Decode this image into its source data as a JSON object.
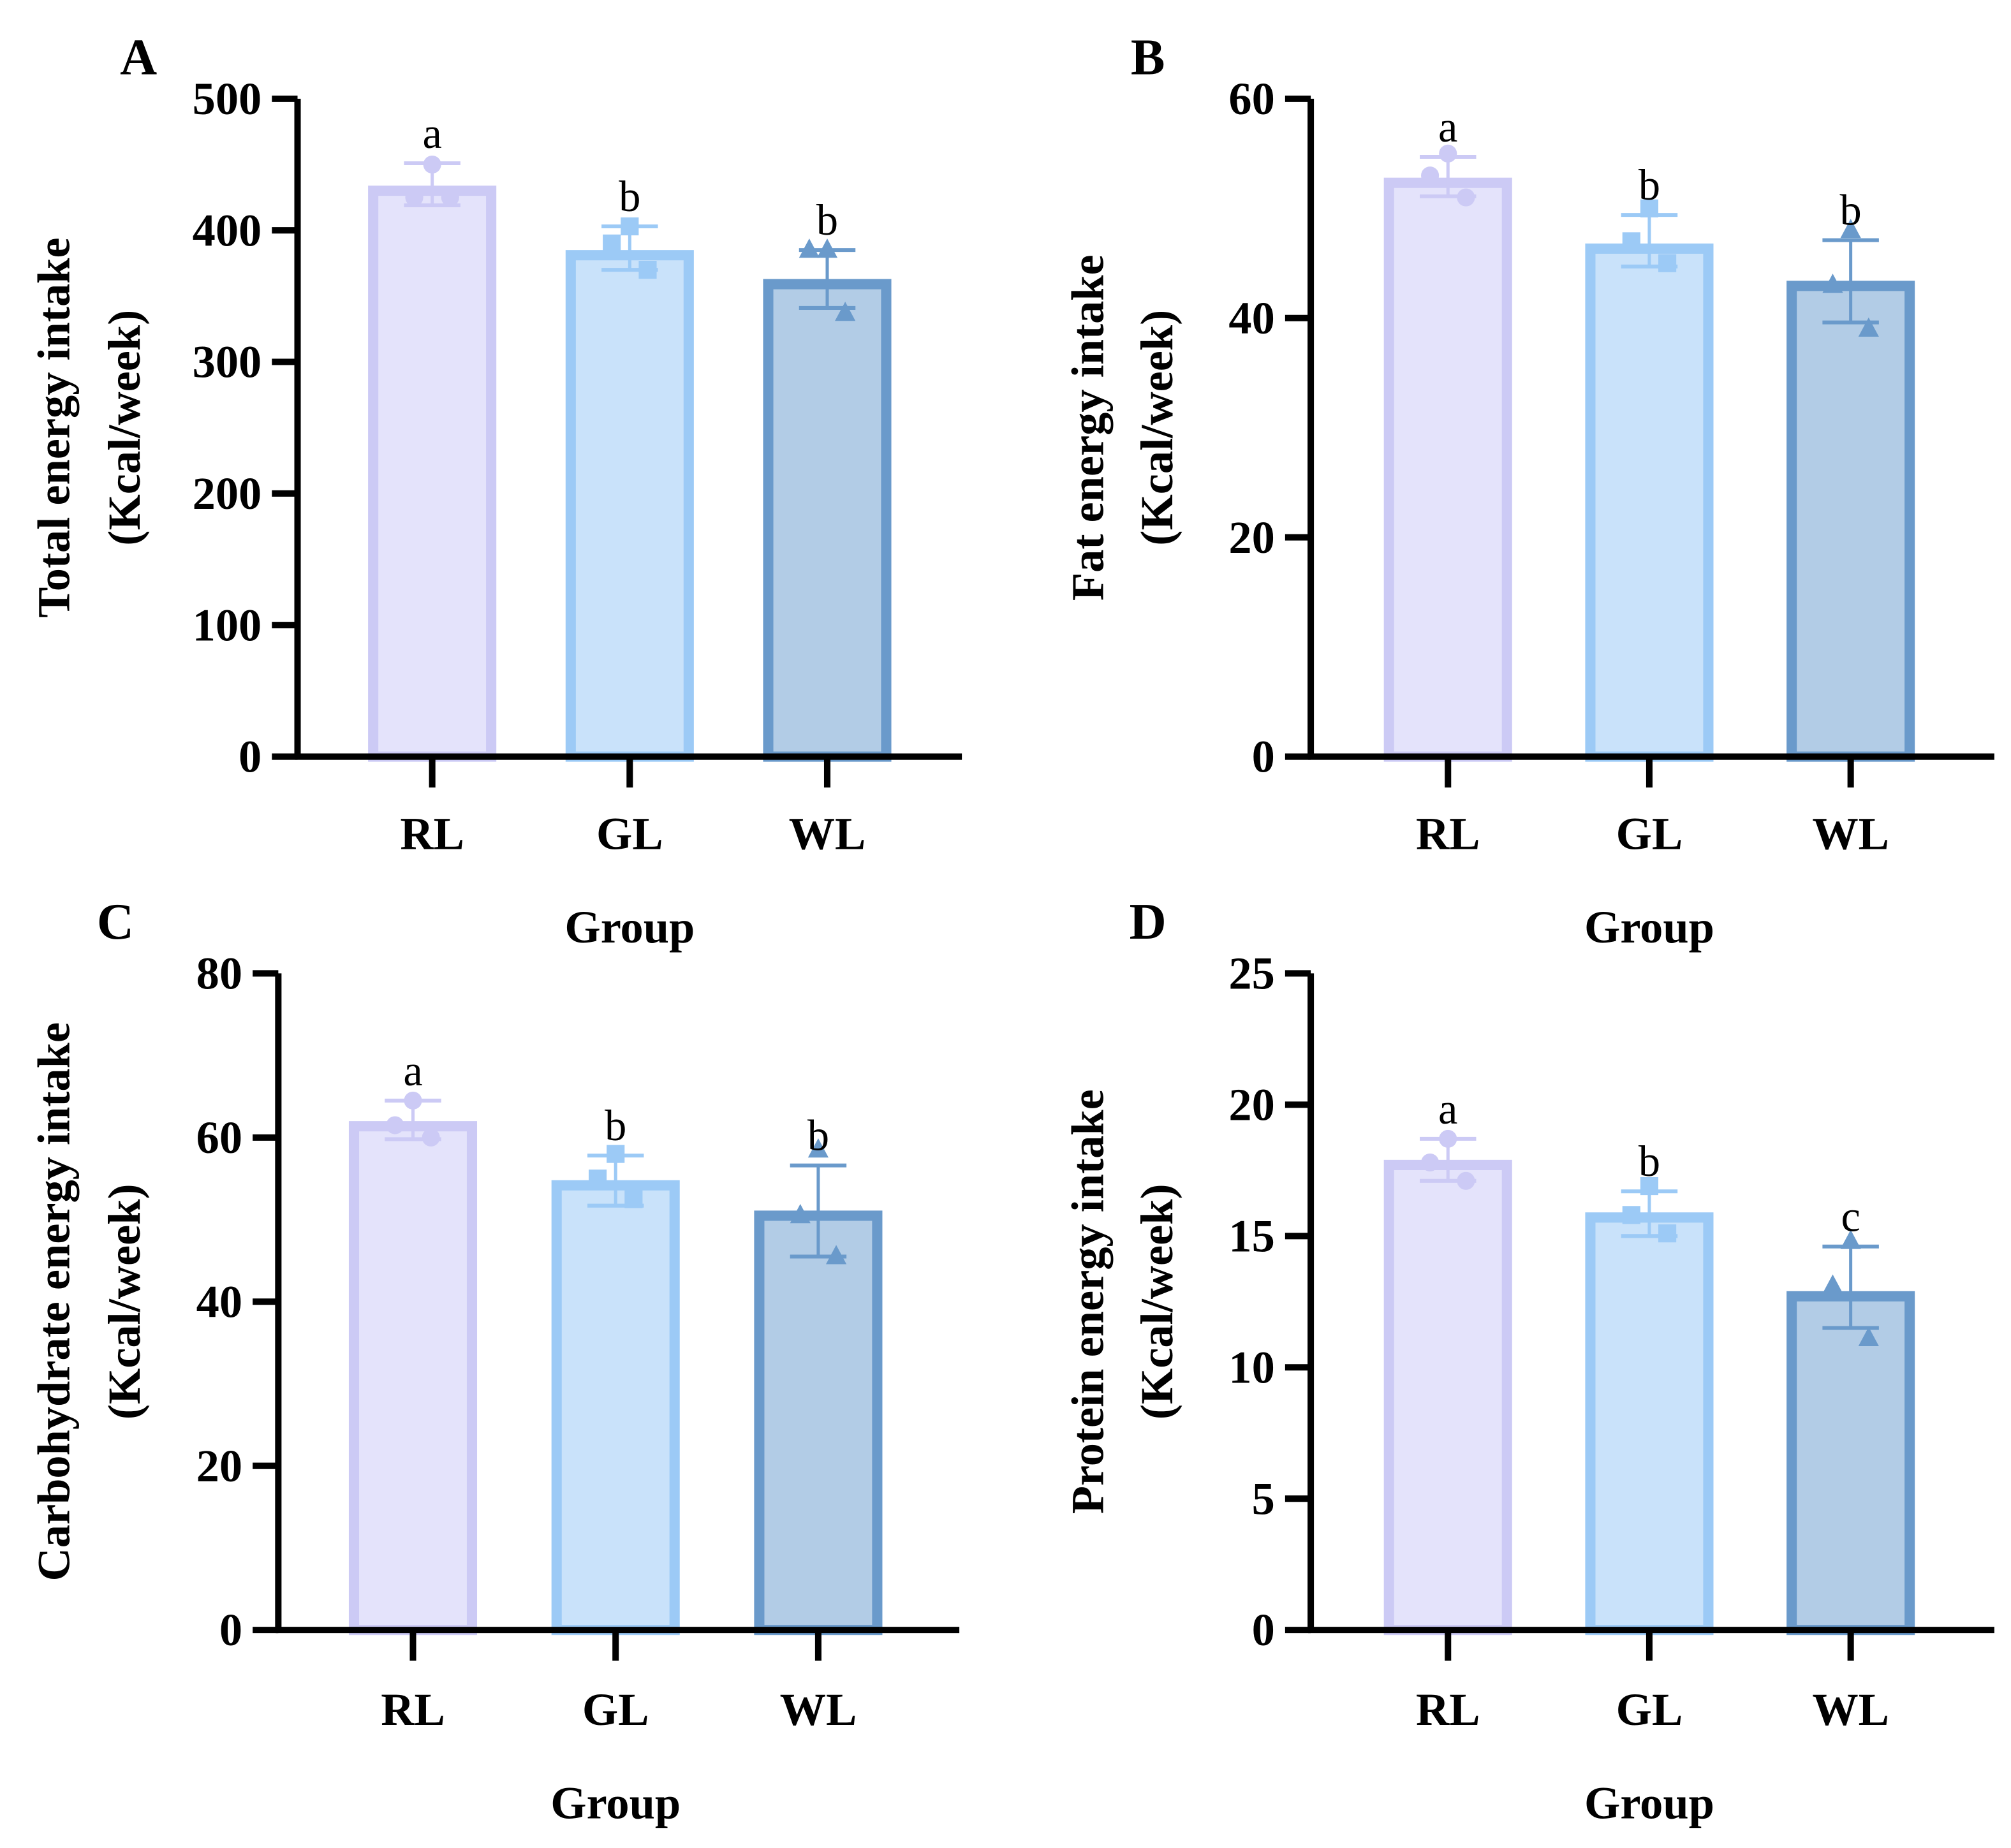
{
  "colors": {
    "RL": {
      "fill": "#e4e3fb",
      "stroke": "#cccaf5"
    },
    "GL": {
      "fill": "#c9e2fa",
      "stroke": "#9ccaf6"
    },
    "WL": {
      "fill": "#b2cce6",
      "stroke": "#6a9acb"
    },
    "axis": "#000000"
  },
  "chart_data": [
    {
      "panel": "A",
      "type": "bar",
      "ylabel_line1": "Total energy intake",
      "ylabel_line2": "(Kcal/week)",
      "xlabel": "Group",
      "categories": [
        "RL",
        "GL",
        "WL"
      ],
      "markers": [
        "circle",
        "square",
        "triangle"
      ],
      "ylim": [
        0,
        500
      ],
      "yticks": [
        0,
        100,
        200,
        300,
        400,
        500
      ],
      "values": [
        434,
        385,
        363
      ],
      "err_low": [
        419,
        370,
        341
      ],
      "err_high": [
        451,
        403,
        385
      ],
      "points": [
        [
          450,
          425,
          425
        ],
        [
          403,
          390,
          370
        ],
        [
          385,
          385,
          337
        ]
      ],
      "letters": [
        "a",
        "b",
        "b"
      ]
    },
    {
      "panel": "B",
      "type": "bar",
      "ylabel_line1": "Fat energy intake",
      "ylabel_line2": "(Kcal/week)",
      "xlabel": "Group",
      "categories": [
        "RL",
        "GL",
        "WL"
      ],
      "markers": [
        "circle",
        "square",
        "triangle"
      ],
      "ylim": [
        0,
        60
      ],
      "yticks": [
        0,
        20,
        40,
        60
      ],
      "values": [
        52.8,
        46.8,
        43.4
      ],
      "err_low": [
        51.1,
        44.7,
        39.6
      ],
      "err_high": [
        54.7,
        49.4,
        47.1
      ],
      "points": [
        [
          55,
          53,
          51
        ],
        [
          50,
          47,
          45
        ],
        [
          48,
          43,
          39
        ]
      ],
      "letters": [
        "a",
        "b",
        "b"
      ]
    },
    {
      "panel": "C",
      "type": "bar",
      "ylabel_line1": "Carbohydrate energy intake",
      "ylabel_line2": "(Kcal/week)",
      "xlabel": "Group",
      "categories": [
        "RL",
        "GL",
        "WL"
      ],
      "markers": [
        "circle",
        "square",
        "triangle"
      ],
      "ylim": [
        0,
        80
      ],
      "yticks": [
        0,
        20,
        40,
        60,
        80
      ],
      "values": [
        62,
        54.8,
        51.1
      ],
      "err_low": [
        59.8,
        51.7,
        45.5
      ],
      "err_high": [
        64.5,
        57.8,
        56.6
      ],
      "points": [
        [
          64.5,
          61.5,
          60
        ],
        [
          58,
          55,
          52.5
        ],
        [
          58.5,
          50.5,
          45.5
        ]
      ],
      "letters": [
        "a",
        "b",
        "b"
      ]
    },
    {
      "panel": "D",
      "type": "bar",
      "ylabel_line1": "Protein energy intake",
      "ylabel_line2": "(Kcal/week)",
      "xlabel": "Group",
      "categories": [
        "RL",
        "GL",
        "WL"
      ],
      "markers": [
        "circle",
        "square",
        "triangle"
      ],
      "ylim": [
        0,
        25
      ],
      "yticks": [
        0,
        5,
        10,
        15,
        20,
        25
      ],
      "values": [
        17.9,
        15.9,
        12.9
      ],
      "err_low": [
        17.1,
        15.0,
        11.5
      ],
      "err_high": [
        18.7,
        16.7,
        14.6
      ],
      "points": [
        [
          18.7,
          17.8,
          17.1
        ],
        [
          16.9,
          15.8,
          15.1
        ],
        [
          14.8,
          13.1,
          11.1
        ]
      ],
      "letters": [
        "a",
        "b",
        "c"
      ]
    }
  ]
}
